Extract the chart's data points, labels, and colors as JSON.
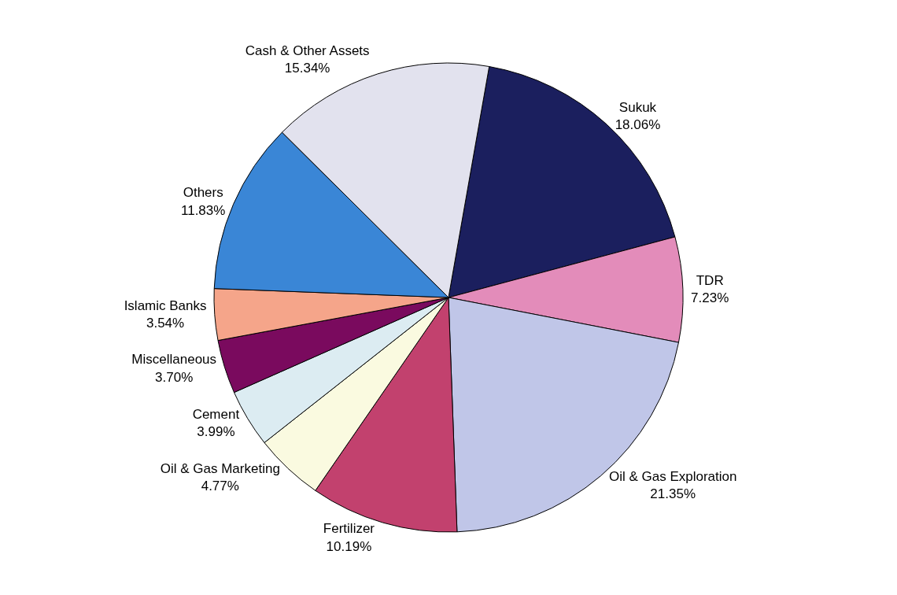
{
  "chart_data": {
    "type": "pie",
    "categories": [
      "Sukuk",
      "TDR",
      "Oil & Gas Exploration",
      "Fertilizer",
      "Oil & Gas Marketing",
      "Cement",
      "Miscellaneous",
      "Islamic Banks",
      "Others",
      "Cash & Other Assets"
    ],
    "values": [
      18.06,
      7.23,
      21.35,
      10.19,
      4.77,
      3.99,
      3.7,
      3.54,
      11.83,
      15.34
    ],
    "value_labels": [
      "18.06%",
      "7.23%",
      "21.35%",
      "10.19%",
      "4.77%",
      "3.99%",
      "3.70%",
      "3.54%",
      "11.83%",
      "15.34%"
    ],
    "colors": [
      "#1b1f5e",
      "#e38cba",
      "#c0c6e8",
      "#c2416e",
      "#fafae0",
      "#dcecf2",
      "#7a0a5e",
      "#f5a58a",
      "#3a86d6",
      "#e2e2ee"
    ],
    "legend": false
  }
}
